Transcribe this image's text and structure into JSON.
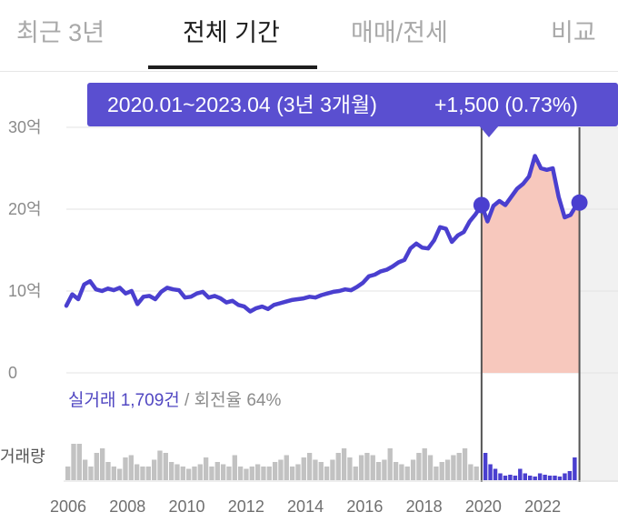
{
  "tabs": [
    {
      "label": "최근 3년",
      "active": false
    },
    {
      "label": "전체 기간",
      "active": true
    },
    {
      "label": "매매/전세",
      "active": false
    },
    {
      "label": "비교",
      "active": false
    }
  ],
  "range_label": {
    "period": "2020.01~2023.04 (3년 3개월)",
    "change": "+1,500 (0.73%)"
  },
  "stats": {
    "trade_count": "실거래 1,709건",
    "separator": " / ",
    "turnover": "회전율 64%"
  },
  "volume_label": "거래량",
  "colors": {
    "line": "#4a3fcf",
    "highlight_fill": "#f7c8bd",
    "range_box": "#5a4fd0",
    "volume_gray": "#c2c2c2",
    "volume_purple": "#4a3fcf",
    "future_shade": "#f1f1f1"
  },
  "chart_data": {
    "type": "line",
    "y_unit": "억",
    "ylim": [
      0,
      30
    ],
    "y_ticks": [
      {
        "value": 0,
        "label": "0"
      },
      {
        "value": 10,
        "label": "10억"
      },
      {
        "value": 20,
        "label": "20억"
      },
      {
        "value": 30,
        "label": "30억"
      }
    ],
    "x_ticks": [
      "2006",
      "2008",
      "2010",
      "2012",
      "2014",
      "2016",
      "2018",
      "2020",
      "2022"
    ],
    "x_range": [
      2006.0,
      2024.6
    ],
    "highlight_range": [
      "2020.01",
      "2023.04"
    ],
    "series": [
      {
        "x": [
          2006.0,
          2006.2,
          2006.4,
          2006.6,
          2006.8,
          2007.0,
          2007.2,
          2007.4,
          2007.6,
          2007.8,
          2008.0,
          2008.2,
          2008.4,
          2008.6,
          2008.8,
          2009.0,
          2009.2,
          2009.4,
          2009.6,
          2009.8,
          2010.0,
          2010.2,
          2010.4,
          2010.6,
          2010.8,
          2011.0,
          2011.2,
          2011.4,
          2011.6,
          2011.8,
          2012.0,
          2012.2,
          2012.4,
          2012.6,
          2012.8,
          2013.0,
          2013.2,
          2013.4,
          2013.6,
          2013.8,
          2014.0,
          2014.2,
          2014.4,
          2014.6,
          2014.8,
          2015.0,
          2015.2,
          2015.4,
          2015.6,
          2015.8,
          2016.0,
          2016.2,
          2016.4,
          2016.6,
          2016.8,
          2017.0,
          2017.2,
          2017.4,
          2017.6,
          2017.8,
          2018.0,
          2018.2,
          2018.4,
          2018.6,
          2018.8,
          2019.0,
          2019.2,
          2019.4,
          2019.6,
          2019.8,
          2020.0,
          2020.2,
          2020.4,
          2020.6,
          2020.8,
          2021.0,
          2021.2,
          2021.4,
          2021.6,
          2021.8,
          2022.0,
          2022.2,
          2022.4,
          2022.6,
          2022.8,
          2023.0,
          2023.2,
          2023.3
        ],
        "values": [
          8.2,
          9.6,
          9.0,
          10.8,
          11.2,
          10.2,
          10.0,
          10.3,
          10.1,
          10.4,
          9.7,
          10.0,
          8.4,
          9.3,
          9.4,
          9.0,
          9.9,
          10.4,
          10.2,
          10.1,
          9.2,
          9.3,
          9.7,
          9.9,
          9.2,
          9.4,
          9.1,
          8.6,
          8.8,
          8.3,
          8.1,
          7.5,
          7.9,
          8.1,
          7.8,
          8.3,
          8.5,
          8.7,
          8.9,
          9.0,
          9.1,
          9.3,
          9.2,
          9.5,
          9.7,
          9.9,
          10.0,
          10.2,
          10.1,
          10.5,
          11.0,
          11.8,
          12.0,
          12.4,
          12.6,
          13.0,
          13.5,
          13.8,
          15.2,
          15.8,
          15.3,
          15.2,
          16.2,
          17.8,
          17.6,
          16.0,
          16.8,
          17.2,
          18.5,
          19.4,
          20.5,
          18.5,
          20.4,
          21.0,
          20.5,
          21.5,
          22.5,
          23.1,
          24.0,
          26.5,
          25.0,
          24.8,
          25.0,
          21.5,
          19.0,
          19.3,
          20.5,
          20.8
        ]
      }
    ],
    "volume": {
      "gray": [
        0.3,
        0.8,
        0.8,
        0.45,
        0.3,
        0.6,
        0.7,
        0.4,
        0.3,
        0.25,
        0.5,
        0.55,
        0.35,
        0.3,
        0.3,
        0.45,
        0.65,
        0.6,
        0.4,
        0.35,
        0.3,
        0.25,
        0.3,
        0.35,
        0.5,
        0.3,
        0.4,
        0.35,
        0.3,
        0.55,
        0.3,
        0.25,
        0.3,
        0.35,
        0.3,
        0.3,
        0.4,
        0.45,
        0.55,
        0.3,
        0.35,
        0.5,
        0.6,
        0.45,
        0.4,
        0.3,
        0.45,
        0.6,
        0.7,
        0.5,
        0.3,
        0.55,
        0.6,
        0.55,
        0.4,
        0.45,
        0.7,
        0.4,
        0.35,
        0.3,
        0.45,
        0.6,
        0.7,
        0.55,
        0.3,
        0.4,
        0.45,
        0.55,
        0.6,
        0.7,
        0.35,
        0.3
      ],
      "purple": [
        0.6,
        0.35,
        0.25,
        0.15,
        0.1,
        0.12,
        0.1,
        0.25,
        0.15,
        0.1,
        0.08,
        0.15,
        0.12,
        0.1,
        0.1,
        0.08,
        0.15,
        0.2,
        0.5
      ]
    }
  }
}
